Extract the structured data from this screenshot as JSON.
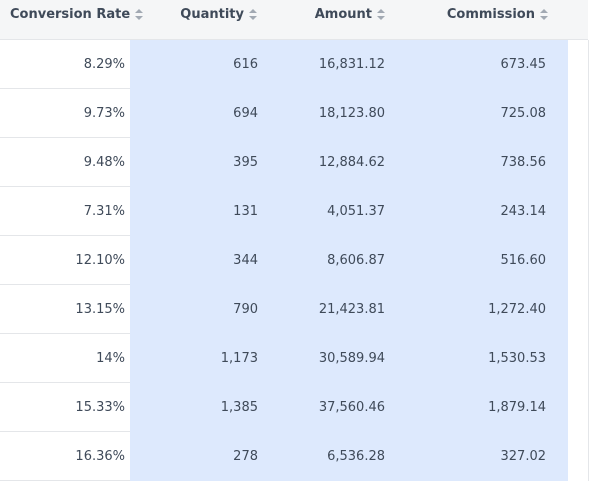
{
  "table": {
    "columns": [
      {
        "label": "Conversion Rate"
      },
      {
        "label": "Quantity"
      },
      {
        "label": "Amount"
      },
      {
        "label": "Commission"
      }
    ],
    "rows": [
      {
        "conversion_rate": "8.29%",
        "quantity": "616",
        "amount": "16,831.12",
        "commission": "673.45"
      },
      {
        "conversion_rate": "9.73%",
        "quantity": "694",
        "amount": "18,123.80",
        "commission": "725.08"
      },
      {
        "conversion_rate": "9.48%",
        "quantity": "395",
        "amount": "12,884.62",
        "commission": "738.56"
      },
      {
        "conversion_rate": "7.31%",
        "quantity": "131",
        "amount": "4,051.37",
        "commission": "243.14"
      },
      {
        "conversion_rate": "12.10%",
        "quantity": "344",
        "amount": "8,606.87",
        "commission": "516.60"
      },
      {
        "conversion_rate": "13.15%",
        "quantity": "790",
        "amount": "21,423.81",
        "commission": "1,272.40"
      },
      {
        "conversion_rate": "14%",
        "quantity": "1,173",
        "amount": "30,589.94",
        "commission": "1,530.53"
      },
      {
        "conversion_rate": "15.33%",
        "quantity": "1,385",
        "amount": "37,560.46",
        "commission": "1,879.14"
      },
      {
        "conversion_rate": "16.36%",
        "quantity": "278",
        "amount": "6,536.28",
        "commission": "327.02"
      }
    ]
  },
  "icons": {
    "sort": "sort-icon"
  },
  "colors": {
    "header_bg": "#f5f6f7",
    "highlight_bg": "#dde9fd",
    "text": "#3f4a59",
    "border": "#e4e6e9"
  }
}
